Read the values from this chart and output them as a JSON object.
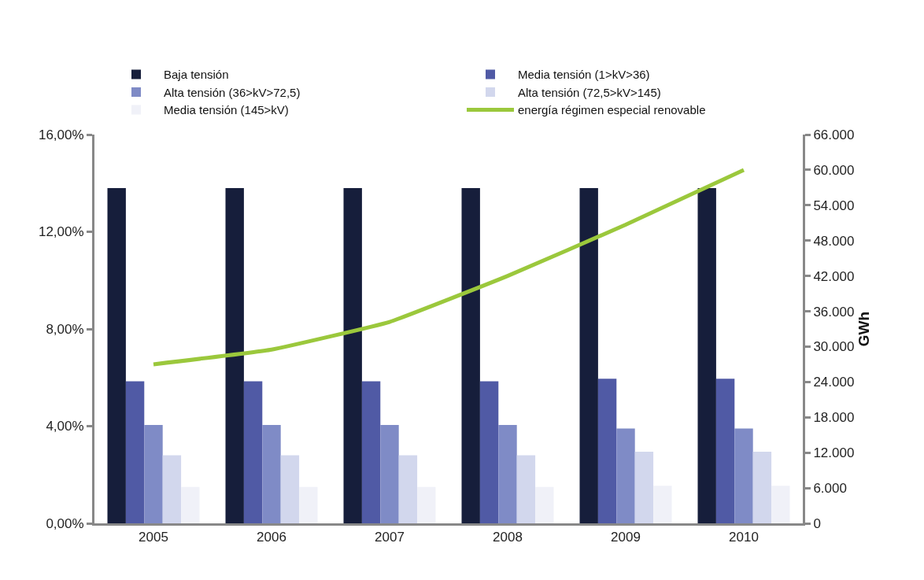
{
  "chart_data": {
    "type": "bar",
    "categories": [
      "2005",
      "2006",
      "2007",
      "2008",
      "2009",
      "2010"
    ],
    "series": [
      {
        "name": "Baja tensión",
        "color": "#161e3b",
        "values": [
          13.8,
          13.8,
          13.8,
          13.8,
          13.8,
          13.8
        ]
      },
      {
        "name": "Media tensión (1>kV>36)",
        "color": "#505aa5",
        "values": [
          5.85,
          5.85,
          5.85,
          5.85,
          5.95,
          5.95
        ]
      },
      {
        "name": "Alta tensión (36>kV>72,5)",
        "color": "#7f8bc6",
        "values": [
          4.05,
          4.05,
          4.05,
          4.05,
          3.9,
          3.9
        ]
      },
      {
        "name": "Alta tensión (72,5>kV>145)",
        "color": "#d2d7ed",
        "values": [
          2.8,
          2.8,
          2.8,
          2.8,
          2.95,
          2.95
        ]
      },
      {
        "name": "Media tensión (145>kV)",
        "color": "#f0f1f8",
        "values": [
          1.5,
          1.5,
          1.5,
          1.5,
          1.55,
          1.55
        ]
      },
      {
        "name": "energía régimen especial renovable",
        "color": "#9bc83c",
        "type": "line",
        "axis": "y2",
        "values": [
          27000,
          29500,
          34200,
          42000,
          50700,
          60000
        ]
      }
    ],
    "ylim": [
      0,
      16
    ],
    "yticks": [
      {
        "value": 0,
        "label": "0,00%"
      },
      {
        "value": 4,
        "label": "4,00%"
      },
      {
        "value": 8,
        "label": "8,00%"
      },
      {
        "value": 12,
        "label": "12,00%"
      },
      {
        "value": 16,
        "label": "16,00%"
      }
    ],
    "y2label": "GWh",
    "y2lim": [
      0,
      66000
    ],
    "y2ticks": [
      0,
      {
        "value": 6000,
        "label": "6.000"
      },
      {
        "value": 12000,
        "label": "12.000"
      },
      {
        "value": 18000,
        "label": "18.000"
      },
      {
        "value": 24000,
        "label": "24.000"
      },
      {
        "value": 30000,
        "label": "30.000"
      },
      {
        "value": 36000,
        "label": "36.000"
      },
      {
        "value": 42000,
        "label": "42.000"
      },
      {
        "value": 48000,
        "label": "48.000"
      },
      {
        "value": 54000,
        "label": "54.000"
      },
      {
        "value": 60000,
        "label": "60.000"
      },
      {
        "value": 66000,
        "label": "66.000"
      }
    ],
    "legend": "top",
    "grid": false
  }
}
